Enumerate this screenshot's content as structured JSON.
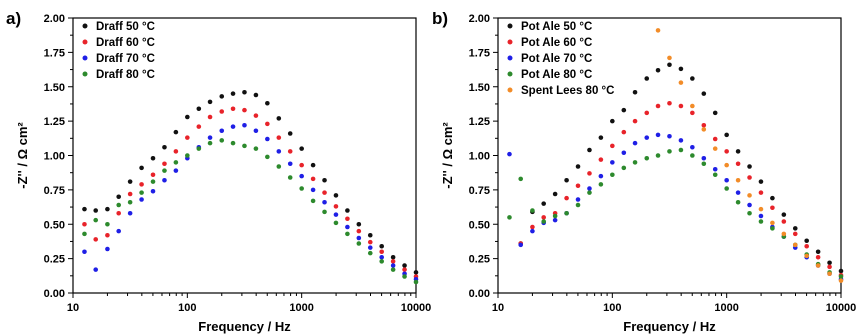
{
  "colors": {
    "black": "#111111",
    "red": "#e8232a",
    "blue": "#1f1fe6",
    "green": "#2d8a2d",
    "orange": "#f28c28"
  },
  "chart_data": [
    {
      "type": "scatter",
      "panel_label": "a)",
      "xlabel": "Frequency / Hz",
      "ylabel": "-Z'' / Ω cm²",
      "xscale": "log",
      "xlim": [
        10,
        10000
      ],
      "ylim": [
        0,
        2.0
      ],
      "xticks": [
        "10",
        "100",
        "1000",
        "10000"
      ],
      "yticks": [
        "0.00",
        "0.25",
        "0.50",
        "0.75",
        "1.00",
        "1.25",
        "1.50",
        "1.75",
        "2.00"
      ],
      "legend_position": "top-left",
      "grid": false,
      "series": [
        {
          "name": "Draff 50 °C",
          "color": "#111111",
          "x": [
            12.6,
            15.8,
            20,
            25.1,
            31.6,
            39.8,
            50.1,
            63.1,
            79.4,
            100,
            126,
            158,
            200,
            251,
            316,
            398,
            501,
            631,
            794,
            1000,
            1259,
            1585,
            1995,
            2512,
            3162,
            3981,
            5012,
            6310,
            7943,
            10000
          ],
          "y": [
            0.61,
            0.6,
            0.61,
            0.7,
            0.81,
            0.91,
            0.98,
            1.06,
            1.17,
            1.28,
            1.34,
            1.39,
            1.43,
            1.45,
            1.46,
            1.44,
            1.38,
            1.27,
            1.16,
            1.05,
            0.93,
            0.82,
            0.71,
            0.6,
            0.5,
            0.42,
            0.34,
            0.26,
            0.2,
            0.15
          ]
        },
        {
          "name": "Draff 60 °C",
          "color": "#e8232a",
          "x": [
            12.6,
            15.8,
            20,
            25.1,
            31.6,
            39.8,
            50.1,
            63.1,
            79.4,
            100,
            126,
            158,
            200,
            251,
            316,
            398,
            501,
            631,
            794,
            1000,
            1259,
            1585,
            1995,
            2512,
            3162,
            3981,
            5012,
            6310,
            7943,
            10000
          ],
          "y": [
            0.5,
            0.39,
            0.42,
            0.58,
            0.72,
            0.79,
            0.86,
            0.94,
            1.03,
            1.13,
            1.21,
            1.28,
            1.32,
            1.34,
            1.33,
            1.29,
            1.23,
            1.13,
            1.03,
            0.93,
            0.83,
            0.73,
            0.63,
            0.54,
            0.45,
            0.37,
            0.3,
            0.23,
            0.17,
            0.12
          ]
        },
        {
          "name": "Draff 70 °C",
          "color": "#1f1fe6",
          "x": [
            12.6,
            15.8,
            20,
            25.1,
            31.6,
            39.8,
            50.1,
            63.1,
            79.4,
            100,
            126,
            158,
            200,
            251,
            316,
            398,
            501,
            631,
            794,
            1000,
            1259,
            1585,
            1995,
            2512,
            3162,
            3981,
            5012,
            6310,
            7943,
            10000
          ],
          "y": [
            0.3,
            0.17,
            0.32,
            0.45,
            0.58,
            0.68,
            0.74,
            0.82,
            0.89,
            0.98,
            1.06,
            1.13,
            1.18,
            1.21,
            1.22,
            1.18,
            1.12,
            1.03,
            0.94,
            0.85,
            0.75,
            0.66,
            0.57,
            0.48,
            0.4,
            0.33,
            0.26,
            0.2,
            0.14,
            0.1
          ]
        },
        {
          "name": "Draff 80 °C",
          "color": "#2d8a2d",
          "x": [
            12.6,
            15.8,
            20,
            25.1,
            31.6,
            39.8,
            50.1,
            63.1,
            79.4,
            100,
            126,
            158,
            200,
            251,
            316,
            398,
            501,
            631,
            794,
            1000,
            1259,
            1585,
            1995,
            2512,
            3162,
            3981,
            5012,
            6310,
            7943,
            10000
          ],
          "y": [
            0.43,
            0.53,
            0.5,
            0.64,
            0.66,
            0.73,
            0.81,
            0.89,
            0.95,
            1.0,
            1.05,
            1.09,
            1.11,
            1.09,
            1.07,
            1.05,
            0.99,
            0.92,
            0.84,
            0.76,
            0.67,
            0.59,
            0.51,
            0.43,
            0.36,
            0.29,
            0.23,
            0.17,
            0.12,
            0.08
          ]
        }
      ]
    },
    {
      "type": "scatter",
      "panel_label": "b)",
      "xlabel": "Frequency / Hz",
      "ylabel": "-Z'' / Ω cm²",
      "xscale": "log",
      "xlim": [
        10,
        10000
      ],
      "ylim": [
        0,
        2.0
      ],
      "xticks": [
        "10",
        "100",
        "1000",
        "10000"
      ],
      "yticks": [
        "0.00",
        "0.25",
        "0.50",
        "0.75",
        "1.00",
        "1.25",
        "1.50",
        "1.75",
        "2.00"
      ],
      "legend_position": "top-left",
      "grid": false,
      "series": [
        {
          "name": "Pot Ale 50 °C",
          "color": "#111111",
          "x": [
            15.8,
            20,
            25.1,
            31.6,
            39.8,
            50.1,
            63.1,
            79.4,
            100,
            126,
            158,
            200,
            251,
            316,
            398,
            501,
            631,
            794,
            1000,
            1259,
            1585,
            1995,
            2512,
            3162,
            3981,
            5012,
            6310,
            7943,
            10000
          ],
          "y": [
            0.36,
            0.59,
            0.65,
            0.72,
            0.82,
            0.92,
            1.04,
            1.13,
            1.25,
            1.33,
            1.46,
            1.56,
            1.62,
            1.66,
            1.63,
            1.56,
            1.45,
            1.31,
            1.15,
            1.03,
            0.92,
            0.81,
            0.69,
            0.57,
            0.47,
            0.38,
            0.3,
            0.22,
            0.16
          ]
        },
        {
          "name": "Pot Ale 60 °C",
          "color": "#e8232a",
          "x": [
            15.8,
            20,
            25.1,
            31.6,
            39.8,
            50.1,
            63.1,
            79.4,
            100,
            126,
            158,
            200,
            251,
            316,
            398,
            501,
            631,
            794,
            1000,
            1259,
            1585,
            1995,
            2512,
            3162,
            3981,
            5012,
            6310,
            7943,
            10000
          ],
          "y": [
            0.36,
            0.48,
            0.55,
            0.58,
            0.69,
            0.78,
            0.87,
            0.97,
            1.07,
            1.17,
            1.25,
            1.31,
            1.36,
            1.38,
            1.36,
            1.31,
            1.22,
            1.12,
            1.03,
            0.94,
            0.84,
            0.73,
            0.62,
            0.52,
            0.43,
            0.34,
            0.26,
            0.19,
            0.13
          ]
        },
        {
          "name": "Pot Ale 70 °C",
          "color": "#1f1fe6",
          "x": [
            12.6,
            15.8,
            20,
            25.1,
            31.6,
            39.8,
            50.1,
            63.1,
            79.4,
            100,
            126,
            158,
            200,
            251,
            316,
            398,
            501,
            631,
            794,
            1000,
            1259,
            1585,
            1995,
            2512,
            3162,
            3981,
            5012,
            6310,
            7943,
            10000
          ],
          "y": [
            1.01,
            0.35,
            0.45,
            0.51,
            0.53,
            0.58,
            0.68,
            0.76,
            0.85,
            0.95,
            1.02,
            1.09,
            1.13,
            1.15,
            1.14,
            1.11,
            1.06,
            0.98,
            0.9,
            0.82,
            0.73,
            0.64,
            0.56,
            0.48,
            0.41,
            0.33,
            0.26,
            0.2,
            0.14,
            0.1
          ]
        },
        {
          "name": "Pot Ale 80 °C",
          "color": "#2d8a2d",
          "x": [
            12.6,
            15.8,
            20,
            25.1,
            31.6,
            39.8,
            50.1,
            63.1,
            79.4,
            100,
            126,
            158,
            200,
            251,
            316,
            398,
            501,
            631,
            794,
            1000,
            1259,
            1585,
            1995,
            2512,
            3162,
            3981,
            5012,
            6310,
            7943,
            10000
          ],
          "y": [
            0.55,
            0.83,
            0.6,
            0.52,
            0.56,
            0.58,
            0.64,
            0.73,
            0.79,
            0.86,
            0.91,
            0.95,
            0.98,
            1.0,
            1.03,
            1.04,
            1.0,
            0.94,
            0.86,
            0.76,
            0.66,
            0.58,
            0.52,
            0.47,
            0.41,
            0.35,
            0.28,
            0.21,
            0.15,
            0.12
          ]
        },
        {
          "name": "Spent Lees 80 °C",
          "color": "#f28c28",
          "x": [
            251,
            316,
            398,
            501,
            631,
            794,
            1000,
            1259,
            1585,
            1995,
            2512,
            3162,
            3981,
            5012,
            6310,
            7943,
            10000
          ],
          "y": [
            1.91,
            1.71,
            1.53,
            1.36,
            1.19,
            1.05,
            0.93,
            0.82,
            0.71,
            0.61,
            0.51,
            0.43,
            0.35,
            0.27,
            0.2,
            0.14,
            0.09
          ]
        }
      ]
    }
  ]
}
